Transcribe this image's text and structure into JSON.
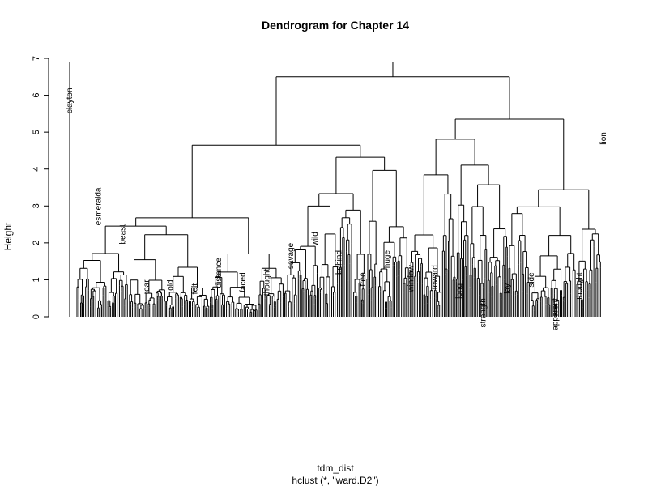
{
  "title": "Dendrogram for Chapter 14",
  "xlabel": "tdm_dist",
  "sublabel": "hclust (*, \"ward.D2\")",
  "ylabel": "Height",
  "chart_data": {
    "type": "dendrogram",
    "ylim": [
      0,
      7
    ],
    "yticks": [
      "0",
      "1",
      "2",
      "3",
      "4",
      "5",
      "6",
      "7"
    ],
    "top_merge_height": 6.9,
    "second_merge_height": 6.5,
    "labeled_terms": [
      {
        "label": "clayton",
        "height": 6.2
      },
      {
        "label": "esmeralda",
        "height": 3.5
      },
      {
        "label": "beast",
        "height": 2.5
      },
      {
        "label": "roar",
        "height": 1.0
      },
      {
        "label": "old",
        "height": 1.0
      },
      {
        "label": "felt",
        "height": 0.9
      },
      {
        "label": "distance",
        "height": 1.6
      },
      {
        "label": "faced",
        "height": 1.2
      },
      {
        "label": "thought",
        "height": 1.3
      },
      {
        "label": "savage",
        "height": 2.0
      },
      {
        "label": "wild",
        "height": 2.3
      },
      {
        "label": "behind",
        "height": 1.8
      },
      {
        "label": "tree",
        "height": 1.2
      },
      {
        "label": "huge",
        "height": 1.8
      },
      {
        "label": "window",
        "height": 1.4
      },
      {
        "label": "toward",
        "height": 1.4
      },
      {
        "label": "long",
        "height": 0.9
      },
      {
        "label": "strength",
        "height": 0.5
      },
      {
        "label": "lay",
        "height": 0.9
      },
      {
        "label": "side",
        "height": 1.2
      },
      {
        "label": "apparent",
        "height": 0.5
      },
      {
        "label": "thought",
        "height": 1.2
      },
      {
        "label": "lion",
        "height": 5.0
      }
    ]
  }
}
